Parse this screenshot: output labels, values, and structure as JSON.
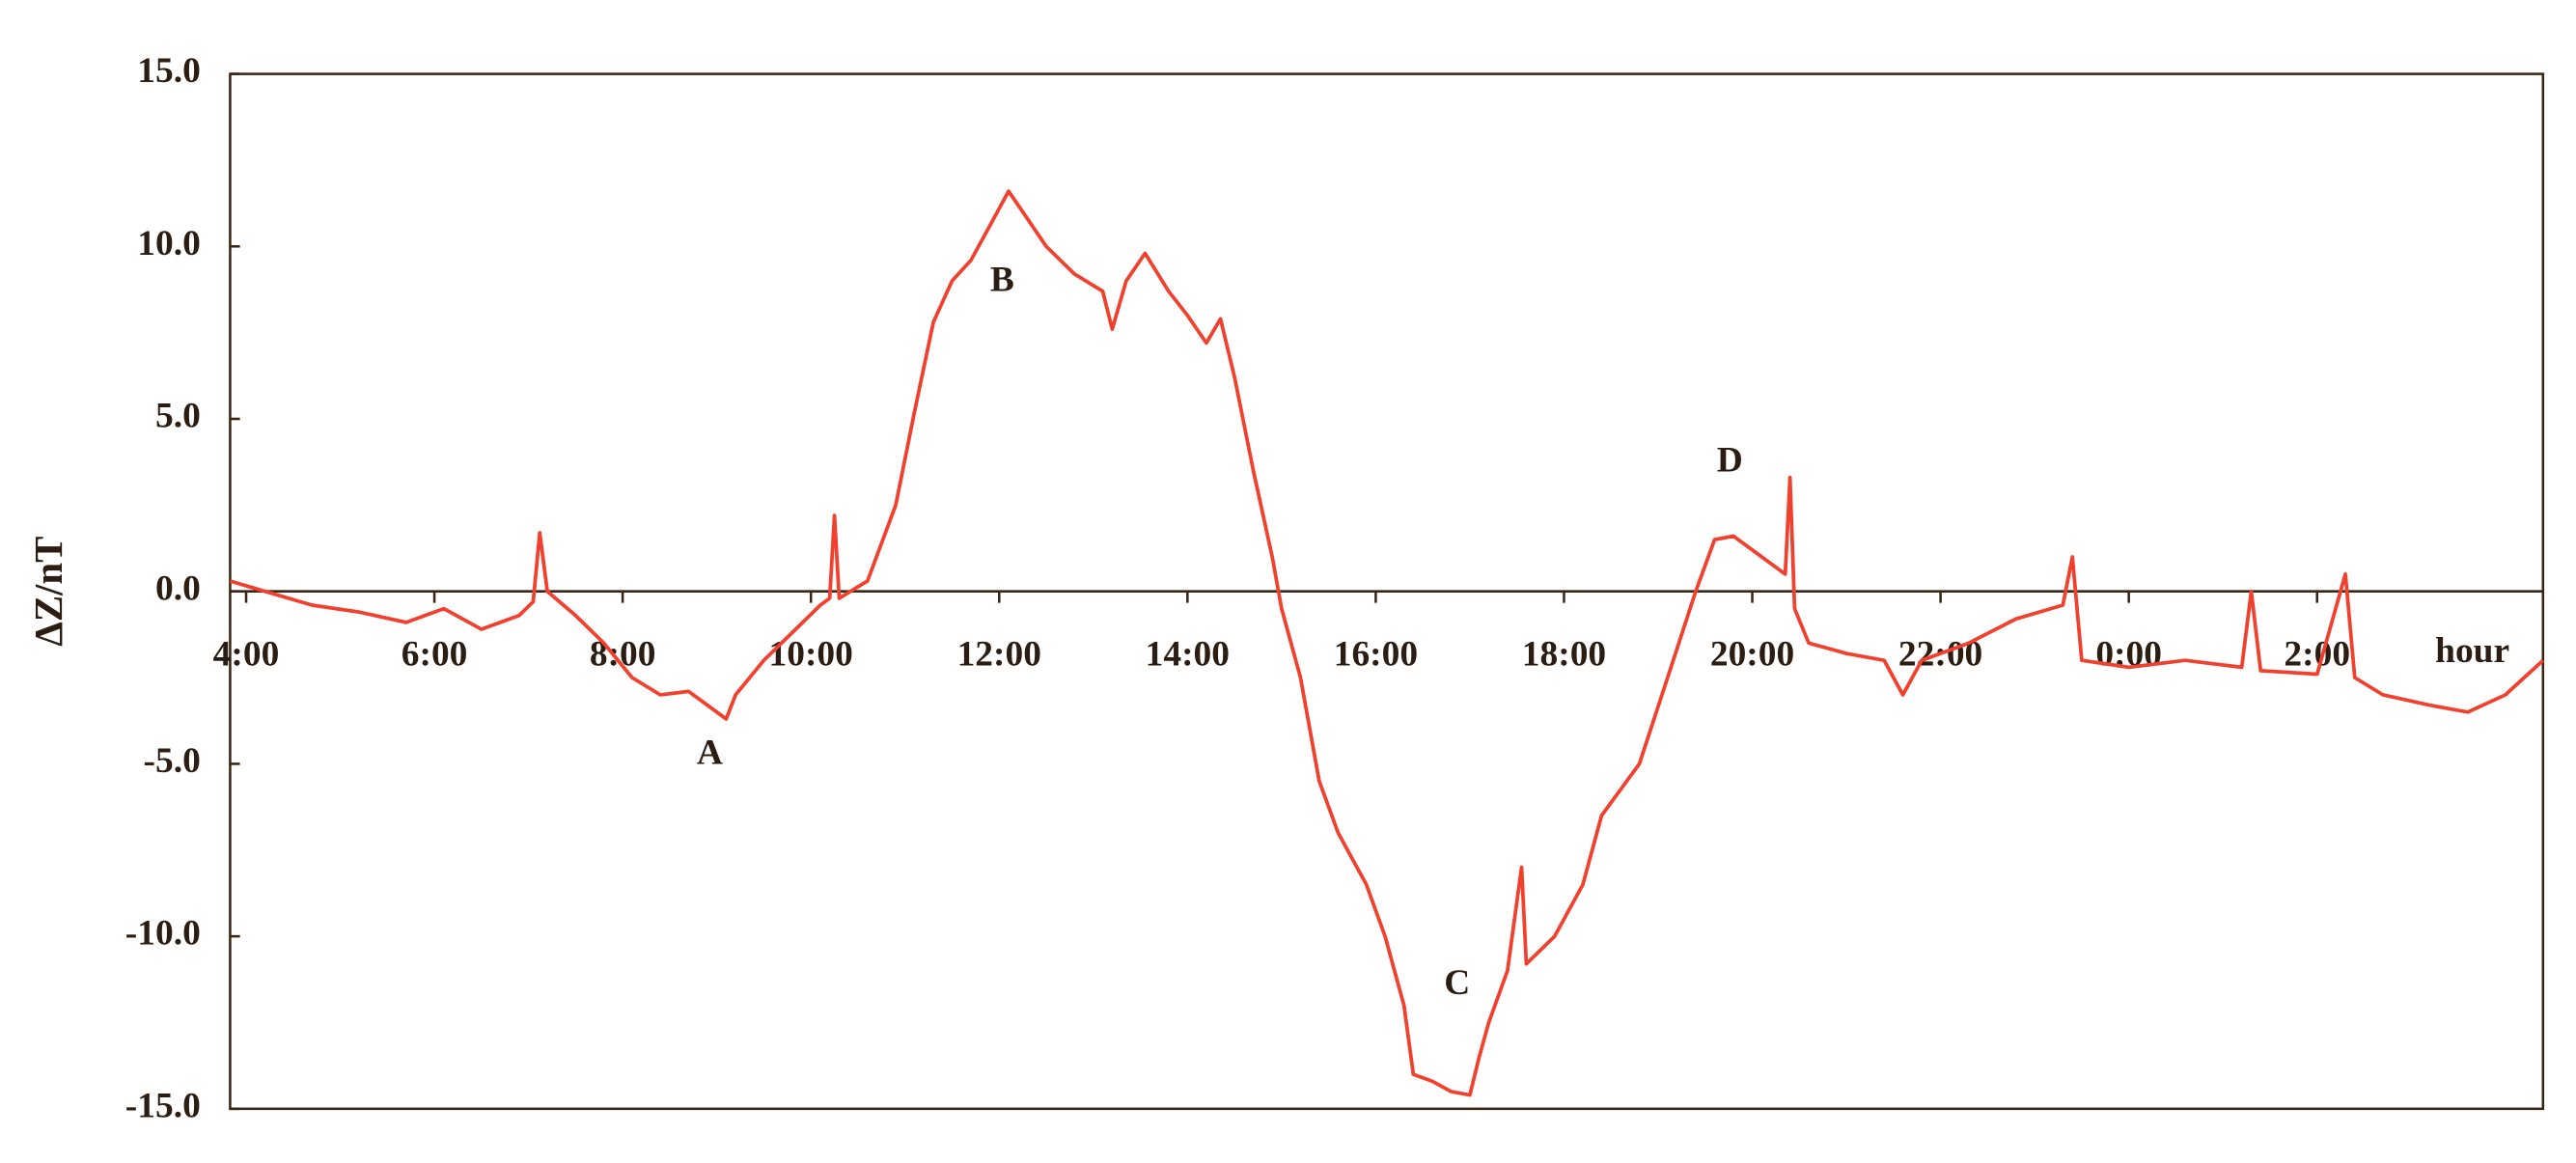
{
  "chart_data": {
    "type": "line",
    "y_label": "ΔZ/nT",
    "x_label": "hour",
    "annotations": [
      "A",
      "B",
      "C",
      "D"
    ],
    "color": "#f2402e",
    "xlim": [
      3.83,
      28.4
    ],
    "ylim": [
      -15,
      15
    ],
    "yticks": [
      {
        "value": 15,
        "label": "15.0"
      },
      {
        "value": 10,
        "label": "10.0"
      },
      {
        "value": 5,
        "label": "5.0"
      },
      {
        "value": 0,
        "label": "0.0"
      },
      {
        "value": -5,
        "label": "-5.0"
      },
      {
        "value": -10,
        "label": "-10.0"
      },
      {
        "value": -15,
        "label": "-15.0"
      }
    ],
    "xticks": [
      {
        "value": 4,
        "label": "4:00"
      },
      {
        "value": 6,
        "label": "6:00"
      },
      {
        "value": 8,
        "label": "8:00"
      },
      {
        "value": 10,
        "label": "10:00"
      },
      {
        "value": 12,
        "label": "12:00"
      },
      {
        "value": 14,
        "label": "14:00"
      },
      {
        "value": 16,
        "label": "16:00"
      },
      {
        "value": 18,
        "label": "18:00"
      },
      {
        "value": 20,
        "label": "20:00"
      },
      {
        "value": 22,
        "label": "22:00"
      },
      {
        "value": 24,
        "label": "0:00"
      },
      {
        "value": 26,
        "label": "2:00"
      }
    ],
    "x": [
      3.83,
      4.2,
      4.7,
      5.2,
      5.7,
      6.1,
      6.5,
      6.9,
      7.05,
      7.12,
      7.2,
      7.5,
      7.8,
      8.1,
      8.4,
      8.7,
      9.0,
      9.1,
      9.2,
      9.5,
      9.8,
      10.1,
      10.2,
      10.25,
      10.3,
      10.6,
      10.9,
      11.1,
      11.3,
      11.5,
      11.7,
      11.9,
      12.1,
      12.3,
      12.5,
      12.8,
      13.1,
      13.2,
      13.35,
      13.55,
      13.8,
      14.0,
      14.2,
      14.35,
      14.5,
      14.7,
      14.9,
      15.0,
      15.2,
      15.4,
      15.6,
      15.9,
      16.1,
      16.3,
      16.4,
      16.6,
      16.8,
      17.0,
      17.1,
      17.2,
      17.4,
      17.55,
      17.6,
      17.9,
      18.2,
      18.4,
      18.8,
      19.1,
      19.4,
      19.6,
      19.8,
      20.1,
      20.35,
      20.4,
      20.45,
      20.6,
      21.0,
      21.4,
      21.6,
      21.8,
      22.3,
      22.8,
      23.3,
      23.4,
      23.5,
      24.0,
      24.6,
      25.2,
      25.3,
      25.4,
      26.0,
      26.3,
      26.4,
      26.7,
      27.2,
      27.6,
      28.0,
      28.4
    ],
    "values": [
      0.3,
      0,
      -0.4,
      -0.6,
      -0.9,
      -0.5,
      -1.1,
      -0.7,
      -0.3,
      1.7,
      0,
      -0.7,
      -1.5,
      -2.5,
      -3.0,
      -2.9,
      -3.5,
      -3.7,
      -3.0,
      -2.0,
      -1.2,
      -0.4,
      -0.2,
      2.2,
      -0.2,
      0.3,
      2.5,
      5.2,
      7.8,
      9.0,
      9.6,
      10.6,
      11.6,
      10.8,
      10.0,
      9.2,
      8.7,
      7.6,
      9.0,
      9.8,
      8.7,
      8.0,
      7.2,
      7.9,
      6.2,
      3.5,
      1.0,
      -0.5,
      -2.5,
      -5.5,
      -7.0,
      -8.5,
      -10.0,
      -12.0,
      -14.0,
      -14.2,
      -14.5,
      -14.6,
      -13.5,
      -12.5,
      -11.0,
      -8.0,
      -10.8,
      -10.0,
      -8.5,
      -6.5,
      -5.0,
      -2.5,
      0.0,
      1.5,
      1.6,
      1.0,
      0.5,
      3.3,
      -0.5,
      -1.5,
      -1.8,
      -2.0,
      -3.0,
      -2.0,
      -1.5,
      -0.8,
      -0.4,
      1.0,
      -2.0,
      -2.2,
      -2.0,
      -2.2,
      0.0,
      -2.3,
      -2.4,
      0.5,
      -2.5,
      -3.0,
      -3.3,
      -3.5,
      -3.0,
      -2.0
    ]
  }
}
